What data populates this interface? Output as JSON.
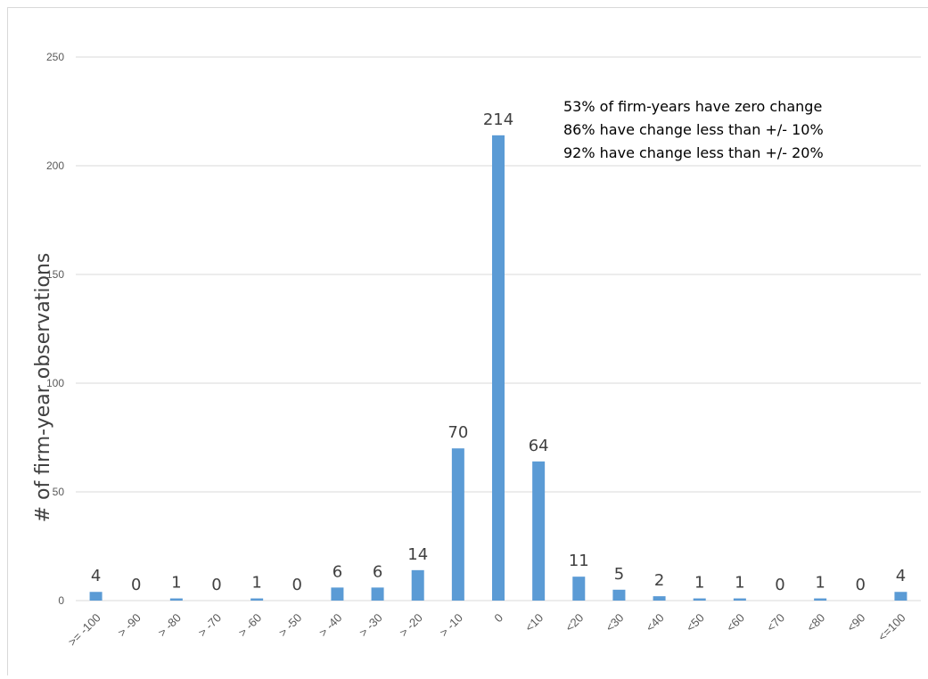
{
  "chart_data": {
    "type": "bar",
    "categories": [
      ">= -100",
      "> -90",
      "> -80",
      "> -70",
      "> -60",
      "> -50",
      "> -40",
      "> -30",
      "> -20",
      "> -10",
      "0",
      "<10",
      "<20",
      "<30",
      "<40",
      "<50",
      "<60",
      "<70",
      "<80",
      "<90",
      "<=100"
    ],
    "values": [
      4,
      0,
      1,
      0,
      1,
      0,
      6,
      6,
      14,
      70,
      214,
      64,
      11,
      5,
      2,
      1,
      1,
      0,
      1,
      0,
      4
    ],
    "ylabel": "# of firm-year observations",
    "ylim": [
      0,
      250
    ],
    "yticks": [
      0,
      50,
      100,
      150,
      200,
      250
    ],
    "grid": true,
    "bar_color": "#5b9bd5",
    "annotations": [
      "53% of firm-years have zero change",
      "86% have change less than +/- 10%",
      "92% have change less than +/- 20%"
    ]
  }
}
